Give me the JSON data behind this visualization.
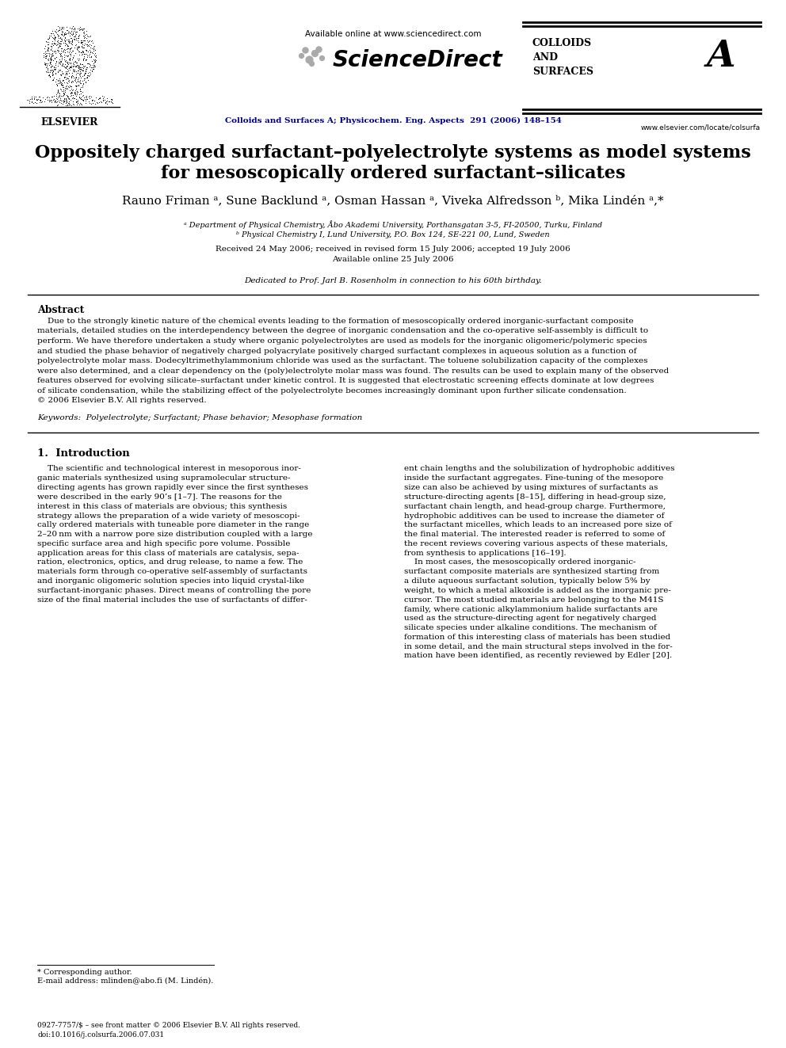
{
  "bg_color": "#ffffff",
  "header_available_online": "Available online at www.sciencedirect.com",
  "journal_info": "Colloids and Surfaces A; Physicochem. Eng. Aspects  291 (2006) 148–154",
  "journal_name_left": "COLLOIDS\nAND\nSURFACES",
  "journal_name_right": "A",
  "elsevier_text": "ELSEVIER",
  "url_bottom": "www.elsevier.com/locate/colsurfa",
  "title_line1": "Oppositely charged surfactant–polyelectrolyte systems as model systems",
  "title_line2": "for mesoscopically ordered surfactant–silicates",
  "authors": "Rauno Friman ᵃ, Sune Backlund ᵃ, Osman Hassan ᵃ, Viveka Alfredsson ᵇ, Mika Lindén ᵃ,*",
  "affil_a": "ᵃ Department of Physical Chemistry, Åbo Akademi University, Porthansgatan 3-5, FI-20500, Turku, Finland",
  "affil_b": "ᵇ Physical Chemistry I, Lund University, P.O. Box 124, SE-221 00, Lund, Sweden",
  "received": "Received 24 May 2006; received in revised form 15 July 2006; accepted 19 July 2006",
  "available": "Available online 25 July 2006",
  "dedication": "Dedicated to Prof. Jarl B. Rosenholm in connection to his 60th birthday.",
  "abstract_title": "Abstract",
  "abstract_lines": [
    "    Due to the strongly kinetic nature of the chemical events leading to the formation of mesoscopically ordered inorganic-surfactant composite",
    "materials, detailed studies on the interdependency between the degree of inorganic condensation and the co-operative self-assembly is difficult to",
    "perform. We have therefore undertaken a study where organic polyelectrolytes are used as models for the inorganic oligomeric/polymeric species",
    "and studied the phase behavior of negatively charged polyacrylate positively charged surfactant complexes in aqueous solution as a function of",
    "polyelectrolyte molar mass. Dodecyltrimethylammonium chloride was used as the surfactant. The toluene solubilization capacity of the complexes",
    "were also determined, and a clear dependency on the (poly)electrolyte molar mass was found. The results can be used to explain many of the observed",
    "features observed for evolving silicate–surfactant under kinetic control. It is suggested that electrostatic screening effects dominate at low degrees",
    "of silicate condensation, while the stabilizing effect of the polyelectrolyte becomes increasingly dominant upon further silicate condensation.",
    "© 2006 Elsevier B.V. All rights reserved."
  ],
  "keywords": "Keywords:  Polyelectrolyte; Surfactant; Phase behavior; Mesophase formation",
  "section1_title": "1.  Introduction",
  "col1_lines": [
    "    The scientific and technological interest in mesoporous inor-",
    "ganic materials synthesized using supramolecular structure-",
    "directing agents has grown rapidly ever since the first syntheses",
    "were described in the early 90’s [1–7]. The reasons for the",
    "interest in this class of materials are obvious; this synthesis",
    "strategy allows the preparation of a wide variety of mesoscopi-",
    "cally ordered materials with tuneable pore diameter in the range",
    "2–20 nm with a narrow pore size distribution coupled with a large",
    "specific surface area and high specific pore volume. Possible",
    "application areas for this class of materials are catalysis, sepa-",
    "ration, electronics, optics, and drug release, to name a few. The",
    "materials form through co-operative self-assembly of surfactants",
    "and inorganic oligomeric solution species into liquid crystal-like",
    "surfactant-inorganic phases. Direct means of controlling the pore",
    "size of the final material includes the use of surfactants of differ-"
  ],
  "col2_lines": [
    "ent chain lengths and the solubilization of hydrophobic additives",
    "inside the surfactant aggregates. Fine-tuning of the mesopore",
    "size can also be achieved by using mixtures of surfactants as",
    "structure-directing agents [8–15], differing in head-group size,",
    "surfactant chain length, and head-group charge. Furthermore,",
    "hydrophobic additives can be used to increase the diameter of",
    "the surfactant micelles, which leads to an increased pore size of",
    "the final material. The interested reader is referred to some of",
    "the recent reviews covering various aspects of these materials,",
    "from synthesis to applications [16–19].",
    "    In most cases, the mesoscopically ordered inorganic-",
    "surfactant composite materials are synthesized starting from",
    "a dilute aqueous surfactant solution, typically below 5% by",
    "weight, to which a metal alkoxide is added as the inorganic pre-",
    "cursor. The most studied materials are belonging to the M41S",
    "family, where cationic alkylammonium halide surfactants are",
    "used as the structure-directing agent for negatively charged",
    "silicate species under alkaline conditions. The mechanism of",
    "formation of this interesting class of materials has been studied",
    "in some detail, and the main structural steps involved in the for-",
    "mation have been identified, as recently reviewed by Edler [20]."
  ],
  "footnote_star": "* Corresponding author.",
  "footnote_email": "E-mail address: mlinden@abo.fi (M. Lindén).",
  "footer_issn": "0927-7757/$ – see front matter © 2006 Elsevier B.V. All rights reserved.",
  "footer_doi": "doi:10.1016/j.colsurfa.2006.07.031",
  "sciencedirect_text": "ScienceDirect",
  "dots_x": [
    390,
    397,
    385,
    402,
    380,
    393,
    406
  ],
  "dots_y": [
    75,
    67,
    63,
    62,
    70,
    80,
    73
  ],
  "dots_size": [
    40,
    32,
    26,
    26,
    18,
    18,
    18
  ],
  "dots_color": "#aaaaaa"
}
